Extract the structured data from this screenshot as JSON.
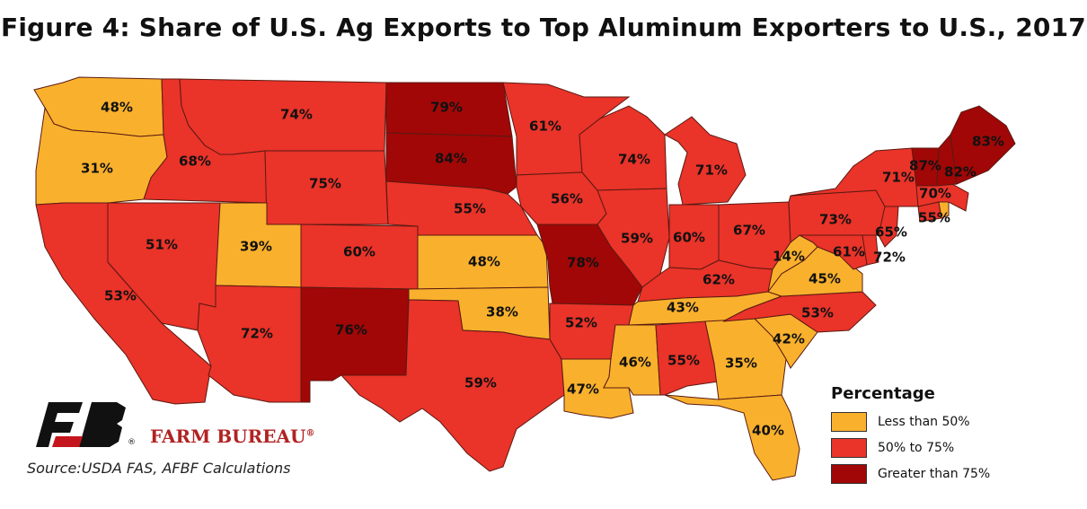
{
  "title": "Figure 4: Share of U.S. Ag Exports to Top Aluminum Exporters to U.S., 2017",
  "colors": {
    "low": "#f9b12d",
    "mid": "#ea3329",
    "high": "#a10707"
  },
  "states": [
    {
      "id": "WA",
      "value": "48%",
      "cat": "low"
    },
    {
      "id": "OR",
      "value": "31%",
      "cat": "low"
    },
    {
      "id": "CA",
      "value": "53%",
      "cat": "mid"
    },
    {
      "id": "ID",
      "value": "68%",
      "cat": "mid"
    },
    {
      "id": "NV",
      "value": "51%",
      "cat": "mid"
    },
    {
      "id": "MT",
      "value": "74%",
      "cat": "mid"
    },
    {
      "id": "WY",
      "value": "75%",
      "cat": "mid"
    },
    {
      "id": "UT",
      "value": "39%",
      "cat": "low"
    },
    {
      "id": "AZ",
      "value": "72%",
      "cat": "mid"
    },
    {
      "id": "CO",
      "value": "60%",
      "cat": "mid"
    },
    {
      "id": "NM",
      "value": "76%",
      "cat": "high"
    },
    {
      "id": "ND",
      "value": "79%",
      "cat": "high"
    },
    {
      "id": "SD",
      "value": "84%",
      "cat": "high"
    },
    {
      "id": "NE",
      "value": "55%",
      "cat": "mid"
    },
    {
      "id": "KS",
      "value": "48%",
      "cat": "low"
    },
    {
      "id": "OK",
      "value": "38%",
      "cat": "low"
    },
    {
      "id": "TX",
      "value": "59%",
      "cat": "mid"
    },
    {
      "id": "MN",
      "value": "61%",
      "cat": "mid"
    },
    {
      "id": "IA",
      "value": "56%",
      "cat": "mid"
    },
    {
      "id": "MO",
      "value": "78%",
      "cat": "high"
    },
    {
      "id": "AR",
      "value": "52%",
      "cat": "mid"
    },
    {
      "id": "LA",
      "value": "47%",
      "cat": "low"
    },
    {
      "id": "WI",
      "value": "74%",
      "cat": "mid"
    },
    {
      "id": "IL",
      "value": "59%",
      "cat": "mid"
    },
    {
      "id": "MI",
      "value": "71%",
      "cat": "mid"
    },
    {
      "id": "IN",
      "value": "60%",
      "cat": "mid"
    },
    {
      "id": "OH",
      "value": "67%",
      "cat": "mid"
    },
    {
      "id": "KY",
      "value": "62%",
      "cat": "mid"
    },
    {
      "id": "TN",
      "value": "43%",
      "cat": "low"
    },
    {
      "id": "MS",
      "value": "46%",
      "cat": "low"
    },
    {
      "id": "AL",
      "value": "55%",
      "cat": "mid"
    },
    {
      "id": "GA",
      "value": "35%",
      "cat": "low"
    },
    {
      "id": "FL",
      "value": "40%",
      "cat": "low"
    },
    {
      "id": "SC",
      "value": "42%",
      "cat": "low"
    },
    {
      "id": "NC",
      "value": "53%",
      "cat": "mid"
    },
    {
      "id": "VA",
      "value": "45%",
      "cat": "low"
    },
    {
      "id": "WV",
      "value": "14%",
      "cat": "low"
    },
    {
      "id": "MD",
      "value": "61%",
      "cat": "mid"
    },
    {
      "id": "DE",
      "value": "72%",
      "cat": "mid"
    },
    {
      "id": "NJ",
      "value": "65%",
      "cat": "mid"
    },
    {
      "id": "PA",
      "value": "73%",
      "cat": "mid"
    },
    {
      "id": "NY",
      "value": "71%",
      "cat": "mid"
    },
    {
      "id": "CT",
      "value": "55%",
      "cat": "mid"
    },
    {
      "id": "RI",
      "value": "",
      "cat": "low"
    },
    {
      "id": "MA",
      "value": "70%",
      "cat": "mid"
    },
    {
      "id": "VT",
      "value": "87%",
      "cat": "high"
    },
    {
      "id": "NH",
      "value": "82%",
      "cat": "high"
    },
    {
      "id": "ME",
      "value": "83%",
      "cat": "high"
    }
  ],
  "legend": {
    "title": "Percentage",
    "items": [
      {
        "label": "Less than 50%",
        "cat": "low"
      },
      {
        "label": "50% to 75%",
        "cat": "mid"
      },
      {
        "label": "Greater than 75%",
        "cat": "high"
      }
    ]
  },
  "logo": {
    "text": "FARM BUREAU",
    "mark": "®",
    "monogram": "FB"
  },
  "source": "Source:USDA FAS, AFBF Calculations"
}
